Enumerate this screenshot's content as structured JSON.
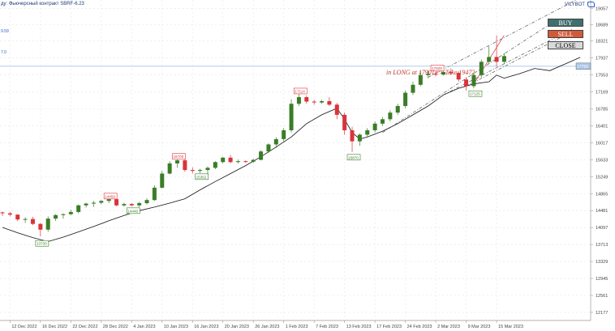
{
  "header": {
    "instrument_label": "ду: Фьючерсный контракт SBRF-6.23",
    "left_tag_1": "9.59",
    "left_tag_2": "7.0",
    "brand": "VILYBOT"
  },
  "buttons": {
    "buy": "BUY",
    "sell": "SELL",
    "close": "CLOSE"
  },
  "annotation": "in LONG at 17901=> Take 19472",
  "colors": {
    "bull": "#3a7d27",
    "bear": "#d9343a",
    "accent_buy": "#3f6f6f",
    "accent_sell": "#d15a3a",
    "price_line": "#a9c4e6"
  },
  "chart_data": {
    "type": "candlestick",
    "y_ticks": [
      19057,
      18689,
      18321,
      17937,
      17553,
      17169,
      16785,
      16401,
      16017,
      15633,
      15249,
      14865,
      14481,
      14097,
      13713,
      13329,
      12945,
      12561,
      12177
    ],
    "ylim": [
      11993,
      19250
    ],
    "x_ticks": [
      {
        "label": "12 Dec 2022",
        "index": 1
      },
      {
        "label": "16 Dec 2022",
        "index": 5
      },
      {
        "label": "22 Dec 2022",
        "index": 9
      },
      {
        "label": "28 Dec 2022",
        "index": 13
      },
      {
        "label": "4 Jan 2023",
        "index": 17
      },
      {
        "label": "10 Jan 2023",
        "index": 21
      },
      {
        "label": "16 Jan 2023",
        "index": 25
      },
      {
        "label": "20 Jan 2023",
        "index": 29
      },
      {
        "label": "26 Jan 2023",
        "index": 33
      },
      {
        "label": "1 Feb 2023",
        "index": 37
      },
      {
        "label": "7 Feb 2023",
        "index": 41
      },
      {
        "label": "13 Feb 2023",
        "index": 45
      },
      {
        "label": "17 Feb 2023",
        "index": 49
      },
      {
        "label": "24 Feb 2023",
        "index": 53
      },
      {
        "label": "2 Mar 2023",
        "index": 57
      },
      {
        "label": "9 Mar 2023",
        "index": 61
      },
      {
        "label": "15 Mar 2023",
        "index": 65
      }
    ],
    "candles": [
      [
        14440,
        14460,
        14360,
        14420
      ],
      [
        14420,
        14450,
        14350,
        14390
      ],
      [
        14390,
        14400,
        14240,
        14280
      ],
      [
        14280,
        14330,
        14200,
        14290
      ],
      [
        14290,
        14340,
        14150,
        14180
      ],
      [
        14180,
        14200,
        13900,
        14050
      ],
      [
        14050,
        14350,
        14000,
        14300
      ],
      [
        14300,
        14400,
        14250,
        14380
      ],
      [
        14380,
        14420,
        14300,
        14400
      ],
      [
        14400,
        14500,
        14380,
        14450
      ],
      [
        14450,
        14620,
        14420,
        14600
      ],
      [
        14600,
        14660,
        14550,
        14640
      ],
      [
        14640,
        14700,
        14560,
        14660
      ],
      [
        14660,
        14720,
        14620,
        14700
      ],
      [
        14700,
        14760,
        14650,
        14740
      ],
      [
        14740,
        14780,
        14580,
        14600
      ],
      [
        14600,
        14660,
        14570,
        14630
      ],
      [
        14630,
        14650,
        14580,
        14600
      ],
      [
        14600,
        14680,
        14560,
        14650
      ],
      [
        14650,
        14760,
        14620,
        14720
      ],
      [
        14720,
        15050,
        14700,
        15000
      ],
      [
        15000,
        15380,
        14980,
        15320
      ],
      [
        15320,
        15600,
        15300,
        15550
      ],
      [
        15550,
        15650,
        15450,
        15620
      ],
      [
        15620,
        15700,
        15360,
        15400
      ],
      [
        15400,
        15460,
        15320,
        15380
      ],
      [
        15380,
        15430,
        15330,
        15400
      ],
      [
        15400,
        15480,
        15300,
        15450
      ],
      [
        15450,
        15600,
        15420,
        15580
      ],
      [
        15580,
        15700,
        15550,
        15680
      ],
      [
        15680,
        15740,
        15550,
        15580
      ],
      [
        15580,
        15640,
        15550,
        15600
      ],
      [
        15600,
        15620,
        15560,
        15590
      ],
      [
        15590,
        15650,
        15560,
        15630
      ],
      [
        15630,
        15850,
        15620,
        15820
      ],
      [
        15820,
        16000,
        15790,
        15980
      ],
      [
        15980,
        16140,
        15900,
        16100
      ],
      [
        16100,
        16350,
        16050,
        16300
      ],
      [
        16300,
        17000,
        16250,
        16900
      ],
      [
        16900,
        17120,
        16850,
        17050
      ],
      [
        17050,
        17090,
        16900,
        16950
      ],
      [
        16950,
        16990,
        16880,
        16930
      ],
      [
        16930,
        16990,
        16900,
        16960
      ],
      [
        16960,
        17050,
        16850,
        16880
      ],
      [
        16880,
        16920,
        16550,
        16650
      ],
      [
        16650,
        16700,
        16200,
        16300
      ],
      [
        16300,
        16380,
        15810,
        16050
      ],
      [
        16050,
        16230,
        15950,
        16200
      ],
      [
        16200,
        16350,
        16150,
        16300
      ],
      [
        16300,
        16500,
        16250,
        16450
      ],
      [
        16450,
        16600,
        16400,
        16550
      ],
      [
        16550,
        16750,
        16500,
        16700
      ],
      [
        16700,
        16900,
        16650,
        16850
      ],
      [
        16850,
        17200,
        16800,
        17150
      ],
      [
        17150,
        17400,
        17100,
        17330
      ],
      [
        17330,
        17650,
        17300,
        17550
      ],
      [
        17550,
        17650,
        17480,
        17580
      ],
      [
        17580,
        17620,
        17520,
        17560
      ],
      [
        17560,
        17640,
        17540,
        17620
      ],
      [
        17620,
        17700,
        17560,
        17600
      ],
      [
        17600,
        17640,
        17400,
        17450
      ],
      [
        17450,
        17500,
        17200,
        17300
      ],
      [
        17300,
        17600,
        17250,
        17550
      ],
      [
        17550,
        17900,
        17500,
        17850
      ],
      [
        17850,
        18200,
        17800,
        17960
      ],
      [
        17960,
        18450,
        17750,
        17850
      ],
      [
        17850,
        18050,
        17800,
        17980
      ]
    ],
    "indicator_line": [
      [
        0,
        14100
      ],
      [
        2,
        13980
      ],
      [
        4,
        13870
      ],
      [
        6,
        13780
      ],
      [
        8,
        13880
      ],
      [
        10,
        14000
      ],
      [
        12,
        14120
      ],
      [
        14,
        14250
      ],
      [
        16,
        14370
      ],
      [
        18,
        14480
      ],
      [
        20,
        14560
      ],
      [
        22,
        14650
      ],
      [
        24,
        14750
      ],
      [
        26,
        14950
      ],
      [
        28,
        15140
      ],
      [
        30,
        15320
      ],
      [
        32,
        15500
      ],
      [
        34,
        15700
      ],
      [
        36,
        15920
      ],
      [
        38,
        16150
      ],
      [
        40,
        16450
      ],
      [
        42,
        16650
      ],
      [
        44,
        16800
      ],
      [
        45,
        16550
      ],
      [
        46,
        16250
      ],
      [
        47,
        16100
      ],
      [
        48,
        16150
      ],
      [
        50,
        16280
      ],
      [
        52,
        16450
      ],
      [
        54,
        16650
      ],
      [
        56,
        16850
      ],
      [
        58,
        17100
      ],
      [
        60,
        17250
      ],
      [
        62,
        17350
      ],
      [
        64,
        17400
      ],
      [
        65,
        17550
      ],
      [
        66,
        17480
      ],
      [
        68,
        17580
      ],
      [
        70,
        17700
      ],
      [
        72,
        17650
      ],
      [
        74,
        17800
      ],
      [
        76,
        17950
      ]
    ],
    "markers": [
      {
        "label": "13730",
        "index": 5,
        "price": 13730,
        "kind": "low"
      },
      {
        "label": "14459",
        "index": 14,
        "price": 14800,
        "kind": "high"
      },
      {
        "label": "14446",
        "index": 17,
        "price": 14470,
        "kind": "low"
      },
      {
        "label": "15700",
        "index": 23,
        "price": 15700,
        "kind": "high"
      },
      {
        "label": "15352",
        "index": 26,
        "price": 15240,
        "kind": "low"
      },
      {
        "label": "17114",
        "index": 39,
        "price": 17180,
        "kind": "high"
      },
      {
        "label": "15870",
        "index": 46,
        "price": 15680,
        "kind": "low"
      },
      {
        "label": "17629",
        "index": 57,
        "price": 17700,
        "kind": "high"
      },
      {
        "label": "17125",
        "index": 62,
        "price": 17120,
        "kind": "low"
      }
    ],
    "current_price": 17750,
    "current_price_label": "17750",
    "target_price": 19472,
    "target_price_label": "19472"
  }
}
